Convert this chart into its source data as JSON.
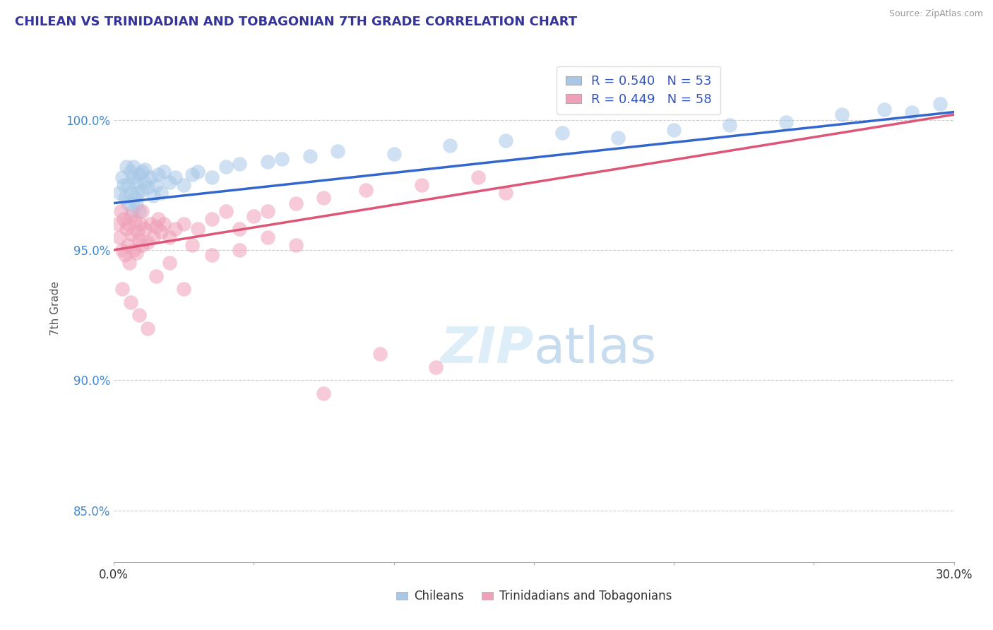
{
  "title": "CHILEAN VS TRINIDADIAN AND TOBAGONIAN 7TH GRADE CORRELATION CHART",
  "source": "Source: ZipAtlas.com",
  "ylabel": "7th Grade",
  "xlim": [
    0.0,
    30.0
  ],
  "ylim": [
    83.0,
    102.5
  ],
  "yticks": [
    85.0,
    90.0,
    95.0,
    100.0
  ],
  "ytick_labels": [
    "85.0%",
    "90.0%",
    "95.0%",
    "100.0%"
  ],
  "blue_R": 0.54,
  "blue_N": 53,
  "pink_R": 0.449,
  "pink_N": 58,
  "blue_color": "#A8C8E8",
  "pink_color": "#F0A0B8",
  "blue_line_color": "#3366CC",
  "pink_line_color": "#DD5577",
  "legend_label_blue": "Chileans",
  "legend_label_pink": "Trinidadians and Tobagonians",
  "blue_x": [
    0.2,
    0.3,
    0.35,
    0.4,
    0.45,
    0.5,
    0.5,
    0.6,
    0.6,
    0.65,
    0.7,
    0.7,
    0.75,
    0.8,
    0.8,
    0.85,
    0.9,
    0.9,
    1.0,
    1.0,
    1.1,
    1.1,
    1.2,
    1.3,
    1.4,
    1.5,
    1.6,
    1.7,
    1.8,
    2.0,
    2.2,
    2.5,
    2.8,
    3.0,
    3.5,
    4.0,
    4.5,
    5.5,
    6.0,
    7.0,
    8.0,
    10.0,
    12.0,
    14.0,
    16.0,
    18.0,
    20.0,
    22.0,
    24.0,
    26.0,
    27.5,
    28.5,
    29.5
  ],
  "blue_y": [
    97.2,
    97.8,
    97.5,
    97.0,
    98.2,
    96.8,
    97.5,
    98.0,
    97.2,
    96.5,
    97.8,
    98.2,
    97.0,
    96.8,
    97.6,
    97.2,
    97.9,
    96.5,
    98.0,
    97.3,
    97.6,
    98.1,
    97.4,
    97.8,
    97.1,
    97.5,
    97.9,
    97.2,
    98.0,
    97.6,
    97.8,
    97.5,
    97.9,
    98.0,
    97.8,
    98.2,
    98.3,
    98.4,
    98.5,
    98.6,
    98.8,
    98.7,
    99.0,
    99.2,
    99.5,
    99.3,
    99.6,
    99.8,
    99.9,
    100.2,
    100.4,
    100.3,
    100.6
  ],
  "pink_x": [
    0.15,
    0.2,
    0.25,
    0.3,
    0.35,
    0.4,
    0.45,
    0.5,
    0.5,
    0.55,
    0.6,
    0.65,
    0.7,
    0.75,
    0.8,
    0.85,
    0.9,
    0.95,
    1.0,
    1.0,
    1.1,
    1.2,
    1.3,
    1.4,
    1.5,
    1.6,
    1.7,
    1.8,
    2.0,
    2.2,
    2.5,
    2.8,
    3.0,
    3.5,
    4.0,
    4.5,
    5.0,
    5.5,
    6.5,
    7.5,
    9.0,
    11.0,
    13.0,
    0.3,
    0.6,
    0.9,
    1.2,
    1.5,
    2.0,
    2.5,
    3.5,
    4.5,
    5.5,
    6.5,
    7.5,
    9.5,
    11.5,
    14.0
  ],
  "pink_y": [
    96.0,
    95.5,
    96.5,
    95.0,
    96.2,
    94.8,
    95.8,
    95.2,
    96.0,
    94.5,
    96.3,
    95.6,
    95.0,
    96.1,
    94.9,
    95.7,
    95.4,
    96.0,
    95.2,
    96.5,
    95.8,
    95.3,
    96.0,
    95.5,
    95.9,
    96.2,
    95.7,
    96.0,
    95.5,
    95.8,
    96.0,
    95.2,
    95.8,
    96.2,
    96.5,
    95.8,
    96.3,
    96.5,
    96.8,
    97.0,
    97.3,
    97.5,
    97.8,
    93.5,
    93.0,
    92.5,
    92.0,
    94.0,
    94.5,
    93.5,
    94.8,
    95.0,
    95.5,
    95.2,
    89.5,
    91.0,
    90.5,
    97.2
  ]
}
